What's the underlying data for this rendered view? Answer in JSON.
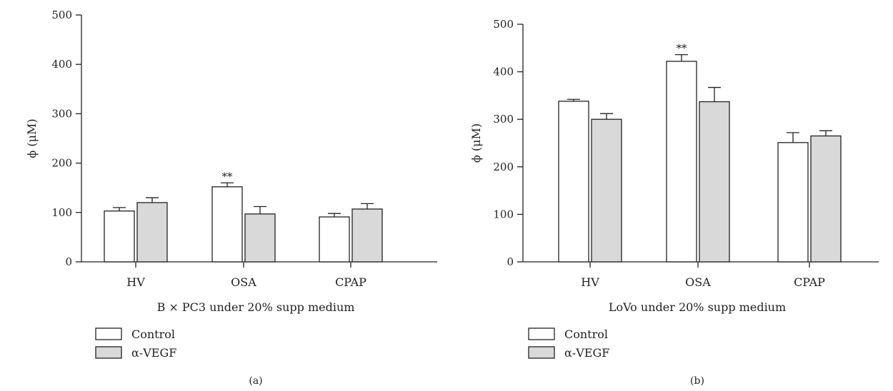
{
  "chart_data": [
    {
      "panel": "(a)",
      "type": "bar",
      "xlabel": "B × PC3 under 20% supp medium",
      "ylabel": "ϕ (μM)",
      "ylim": [
        0,
        500
      ],
      "yticks": [
        0,
        100,
        200,
        300,
        400,
        500
      ],
      "categories": [
        "HV",
        "OSA",
        "CPAP"
      ],
      "series": [
        {
          "name": "Control",
          "values": [
            103,
            152,
            91
          ],
          "errors": [
            7,
            8,
            7
          ],
          "color": "#ffffff"
        },
        {
          "name": "α-VEGF",
          "values": [
            120,
            97,
            107
          ],
          "errors": [
            10,
            15,
            11
          ],
          "color": "#d9d9d9"
        }
      ],
      "annotations": [
        {
          "series": 0,
          "category": 1,
          "text": "**"
        }
      ],
      "legend": "bottom-left"
    },
    {
      "panel": "(b)",
      "type": "bar",
      "xlabel": "LoVo under 20% supp medium",
      "ylabel": "ϕ (μM)",
      "ylim": [
        0,
        500
      ],
      "yticks": [
        0,
        100,
        200,
        300,
        400,
        500
      ],
      "categories": [
        "HV",
        "OSA",
        "CPAP"
      ],
      "series": [
        {
          "name": "Control",
          "values": [
            338,
            422,
            251
          ],
          "errors": [
            4,
            14,
            21
          ],
          "color": "#ffffff"
        },
        {
          "name": "α-VEGF",
          "values": [
            300,
            337,
            265
          ],
          "errors": [
            12,
            30,
            11
          ],
          "color": "#d9d9d9"
        }
      ],
      "annotations": [
        {
          "series": 0,
          "category": 1,
          "text": "**"
        }
      ],
      "legend": "bottom-left"
    }
  ]
}
